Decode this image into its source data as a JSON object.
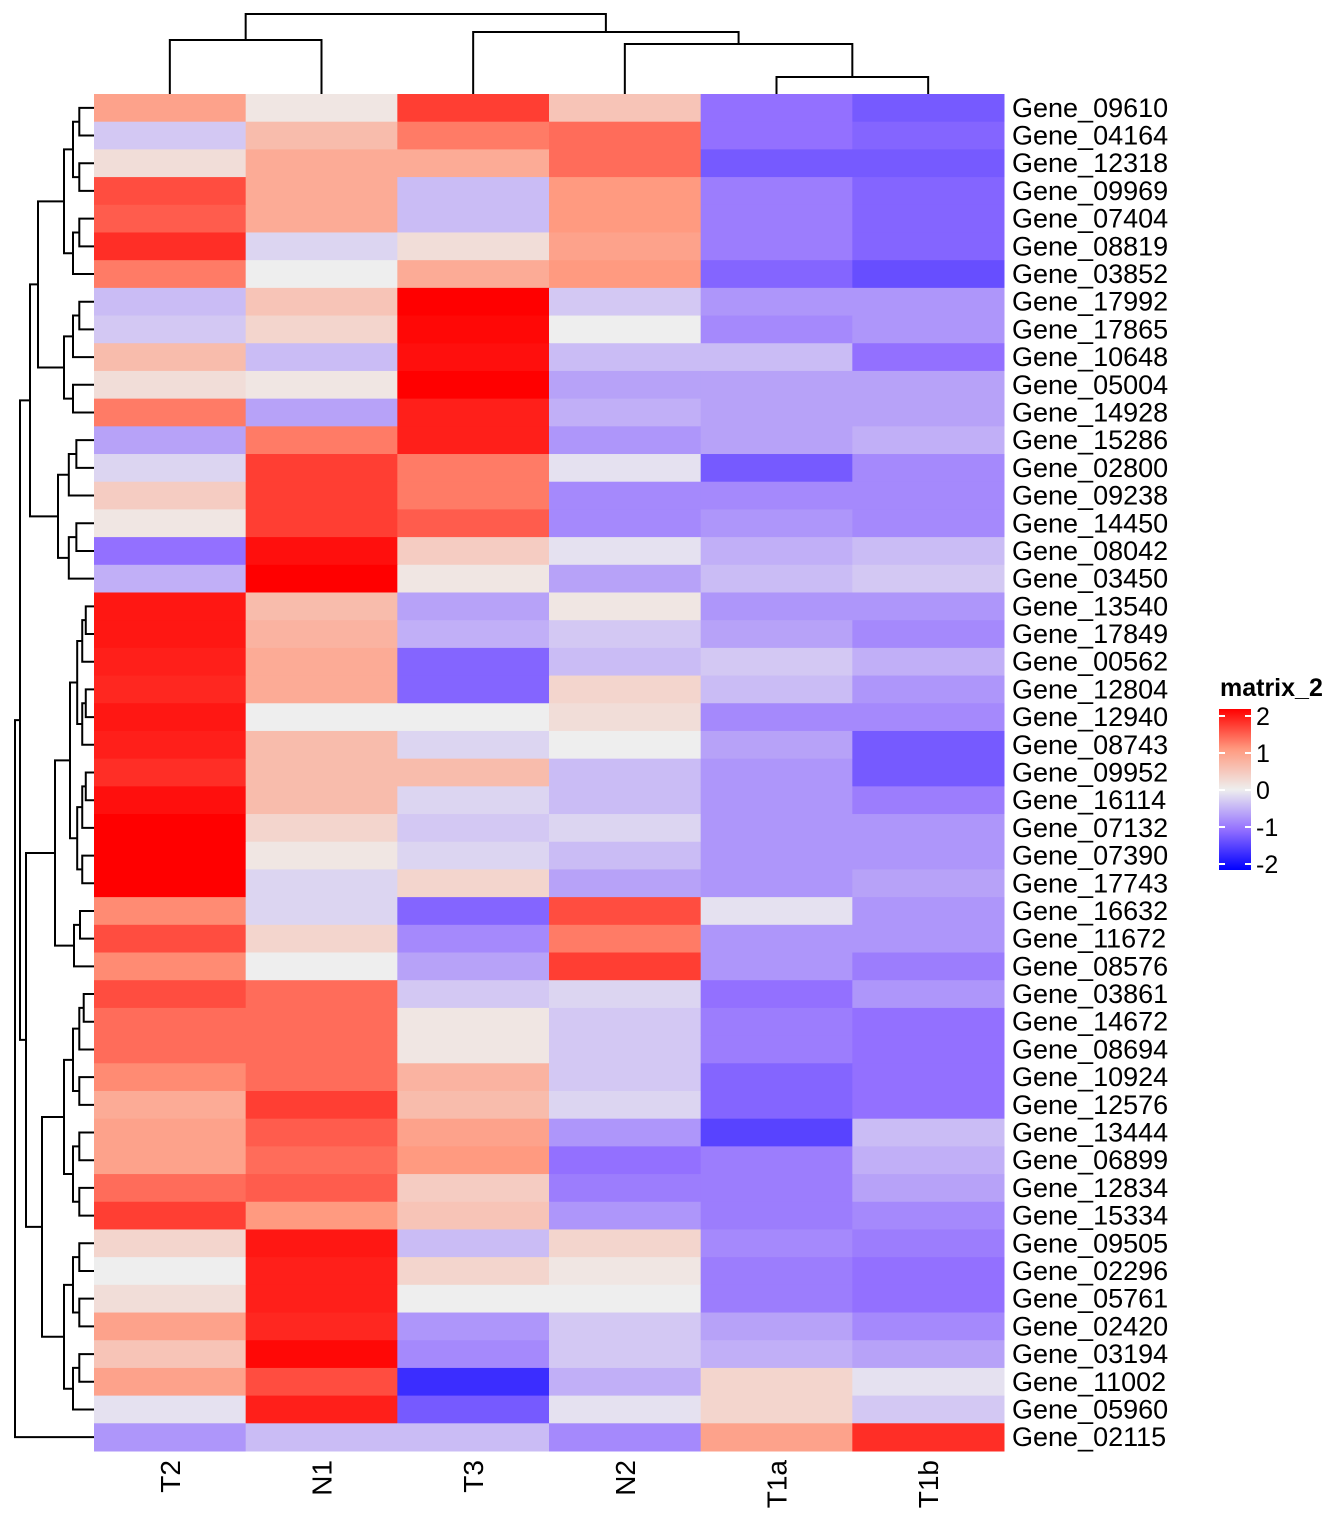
{
  "chart_data": {
    "type": "heatmap",
    "columns": [
      "T2",
      "N1",
      "T3",
      "N2",
      "T1a",
      "T1b"
    ],
    "rows": [
      "Gene_09610",
      "Gene_04164",
      "Gene_12318",
      "Gene_09969",
      "Gene_07404",
      "Gene_08819",
      "Gene_03852",
      "Gene_17992",
      "Gene_17865",
      "Gene_10648",
      "Gene_05004",
      "Gene_14928",
      "Gene_15286",
      "Gene_02800",
      "Gene_09238",
      "Gene_14450",
      "Gene_08042",
      "Gene_03450",
      "Gene_13540",
      "Gene_17849",
      "Gene_00562",
      "Gene_12804",
      "Gene_12940",
      "Gene_08743",
      "Gene_09952",
      "Gene_16114",
      "Gene_07132",
      "Gene_07390",
      "Gene_17743",
      "Gene_16632",
      "Gene_11672",
      "Gene_08576",
      "Gene_03861",
      "Gene_14672",
      "Gene_08694",
      "Gene_10924",
      "Gene_12576",
      "Gene_13444",
      "Gene_06899",
      "Gene_12834",
      "Gene_15334",
      "Gene_09505",
      "Gene_02296",
      "Gene_05761",
      "Gene_02420",
      "Gene_03194",
      "Gene_11002",
      "Gene_05960",
      "Gene_02115"
    ],
    "values": [
      [
        0.9,
        0.1,
        1.6,
        0.5,
        -1.0,
        -1.2
      ],
      [
        -0.3,
        0.6,
        1.2,
        1.3,
        -1.0,
        -1.1
      ],
      [
        0.2,
        0.8,
        0.8,
        1.3,
        -1.2,
        -1.2
      ],
      [
        1.5,
        0.8,
        -0.4,
        1.0,
        -0.9,
        -1.1
      ],
      [
        1.4,
        0.8,
        -0.4,
        1.0,
        -0.9,
        -1.1
      ],
      [
        1.7,
        -0.2,
        0.2,
        0.9,
        -0.9,
        -1.1
      ],
      [
        1.2,
        0.0,
        0.8,
        1.0,
        -1.1,
        -1.3
      ],
      [
        -0.4,
        0.5,
        2.0,
        -0.3,
        -0.7,
        -0.7
      ],
      [
        -0.3,
        0.3,
        1.95,
        0.0,
        -0.8,
        -0.7
      ],
      [
        0.6,
        -0.4,
        1.9,
        -0.4,
        -0.4,
        -1.0
      ],
      [
        0.2,
        0.1,
        2.0,
        -0.6,
        -0.6,
        -0.6
      ],
      [
        1.2,
        -0.6,
        1.8,
        -0.5,
        -0.6,
        -0.6
      ],
      [
        -0.6,
        1.2,
        1.8,
        -0.7,
        -0.6,
        -0.5
      ],
      [
        -0.2,
        1.6,
        1.2,
        -0.1,
        -1.2,
        -0.8
      ],
      [
        0.4,
        1.6,
        1.2,
        -0.8,
        -0.8,
        -0.8
      ],
      [
        0.1,
        1.6,
        1.4,
        -0.8,
        -0.7,
        -0.8
      ],
      [
        -1.0,
        1.9,
        0.4,
        -0.1,
        -0.5,
        -0.4
      ],
      [
        -0.5,
        2.0,
        0.1,
        -0.6,
        -0.4,
        -0.3
      ],
      [
        1.85,
        0.6,
        -0.6,
        0.1,
        -0.7,
        -0.7
      ],
      [
        1.85,
        0.7,
        -0.5,
        -0.3,
        -0.6,
        -0.8
      ],
      [
        1.8,
        0.8,
        -1.1,
        -0.4,
        -0.3,
        -0.5
      ],
      [
        1.75,
        0.8,
        -1.1,
        0.3,
        -0.4,
        -0.7
      ],
      [
        1.85,
        0.0,
        0.0,
        0.2,
        -0.8,
        -0.8
      ],
      [
        1.8,
        0.6,
        -0.2,
        0.0,
        -0.6,
        -1.2
      ],
      [
        1.7,
        0.6,
        0.6,
        -0.4,
        -0.7,
        -1.2
      ],
      [
        1.9,
        0.6,
        -0.2,
        -0.4,
        -0.7,
        -0.9
      ],
      [
        2.0,
        0.3,
        -0.3,
        -0.2,
        -0.7,
        -0.7
      ],
      [
        2.0,
        0.1,
        -0.2,
        -0.4,
        -0.7,
        -0.7
      ],
      [
        2.0,
        -0.2,
        0.3,
        -0.6,
        -0.7,
        -0.6
      ],
      [
        1.1,
        -0.2,
        -1.1,
        1.5,
        -0.1,
        -0.7
      ],
      [
        1.5,
        0.3,
        -0.8,
        1.2,
        -0.7,
        -0.7
      ],
      [
        1.1,
        0.0,
        -0.6,
        1.6,
        -0.7,
        -0.9
      ],
      [
        1.5,
        1.3,
        -0.3,
        -0.2,
        -1.0,
        -0.7
      ],
      [
        1.3,
        1.3,
        0.1,
        -0.3,
        -0.9,
        -1.0
      ],
      [
        1.3,
        1.3,
        0.1,
        -0.3,
        -0.9,
        -1.0
      ],
      [
        1.1,
        1.3,
        0.7,
        -0.3,
        -1.1,
        -1.0
      ],
      [
        0.8,
        1.6,
        0.6,
        -0.2,
        -1.1,
        -1.0
      ],
      [
        0.9,
        1.4,
        0.9,
        -0.7,
        -1.4,
        -0.4
      ],
      [
        0.9,
        1.3,
        1.0,
        -1.0,
        -0.9,
        -0.5
      ],
      [
        1.3,
        1.4,
        0.4,
        -0.9,
        -0.9,
        -0.6
      ],
      [
        1.6,
        1.0,
        0.5,
        -0.7,
        -0.9,
        -0.8
      ],
      [
        0.3,
        1.85,
        -0.4,
        0.3,
        -0.8,
        -0.9
      ],
      [
        0.0,
        1.8,
        0.3,
        0.1,
        -0.9,
        -1.0
      ],
      [
        0.2,
        1.8,
        0.0,
        0.0,
        -0.9,
        -1.0
      ],
      [
        0.9,
        1.75,
        -0.7,
        -0.3,
        -0.6,
        -0.8
      ],
      [
        0.5,
        1.95,
        -0.8,
        -0.3,
        -0.5,
        -0.6
      ],
      [
        0.9,
        1.5,
        -1.6,
        -0.5,
        0.3,
        -0.1
      ],
      [
        -0.1,
        1.8,
        -1.2,
        -0.1,
        0.3,
        -0.3
      ],
      [
        -0.7,
        -0.4,
        -0.4,
        -0.8,
        0.9,
        1.7
      ]
    ],
    "legend": {
      "title": "matrix_2",
      "ticks": [
        "2",
        "1",
        "0",
        "-1",
        "-2"
      ],
      "range": [
        -2,
        2
      ],
      "colors": {
        "low": "#0000ff",
        "mid": "#eeeeee",
        "high": "#ff0000"
      },
      "placement": "right"
    },
    "row_dendrogram": "left",
    "column_dendrogram": "top"
  }
}
